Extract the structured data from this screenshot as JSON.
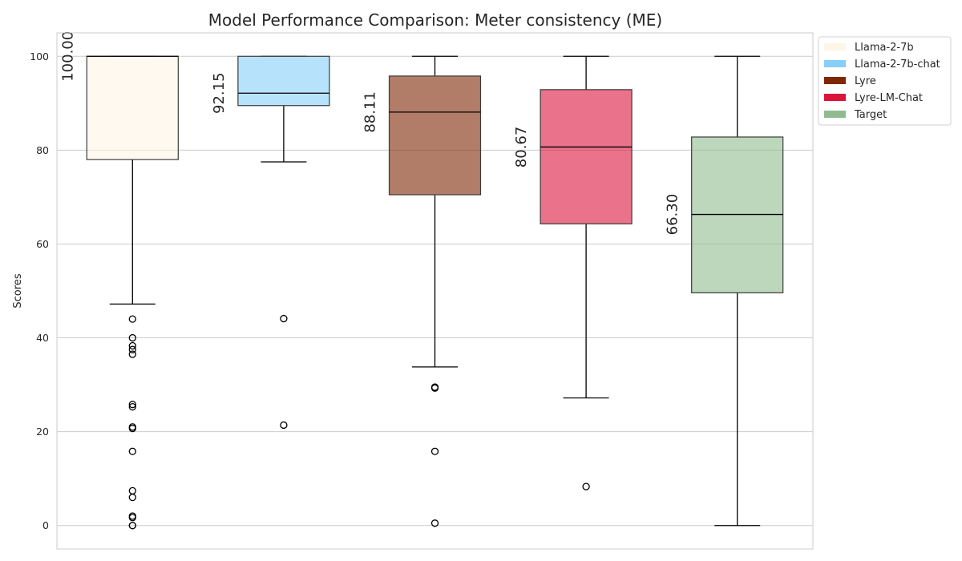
{
  "chart_data": {
    "type": "box",
    "title": "Model Performance Comparison: Meter consistency (ME)",
    "xlabel": "",
    "ylabel": "Scores",
    "ylim": [
      -5,
      105
    ],
    "yticks": [
      0,
      20,
      40,
      60,
      80,
      100
    ],
    "grid": true,
    "legend_position": "outside top-right",
    "series": [
      {
        "name": "Llama-2-7b",
        "color": "#FFF5E6",
        "q1": 78.0,
        "median": 100.0,
        "q3": 100.0,
        "whisker_low": 47.2,
        "whisker_high": 100.0,
        "median_label": "100.00",
        "outliers": [
          44.0,
          40.0,
          38.3,
          37.5,
          36.5,
          25.8,
          25.3,
          21.0,
          20.7,
          15.8,
          7.4,
          6.0,
          2.0,
          1.7,
          0.0,
          0.0
        ]
      },
      {
        "name": "Llama-2-7b-chat",
        "color": "#87CEFA",
        "q1": 89.5,
        "median": 92.15,
        "q3": 100.0,
        "whisker_low": 77.5,
        "whisker_high": 100.0,
        "median_label": "92.15",
        "outliers": [
          44.1,
          21.4
        ]
      },
      {
        "name": "Lyre",
        "color": "#7F2704",
        "q1": 70.5,
        "median": 88.11,
        "q3": 95.8,
        "whisker_low": 33.8,
        "whisker_high": 100.0,
        "median_label": "88.11",
        "outliers": [
          29.5,
          29.3,
          15.8,
          0.5
        ]
      },
      {
        "name": "Lyre-LM-Chat",
        "color": "#DC143C",
        "q1": 64.3,
        "median": 80.67,
        "q3": 92.9,
        "whisker_low": 27.2,
        "whisker_high": 100.0,
        "median_label": "80.67",
        "outliers": [
          8.3
        ]
      },
      {
        "name": "Target",
        "color": "#8FBC8F",
        "q1": 49.6,
        "median": 66.3,
        "q3": 82.8,
        "whisker_low": 0.0,
        "whisker_high": 100.0,
        "median_label": "66.30",
        "outliers": []
      }
    ]
  }
}
